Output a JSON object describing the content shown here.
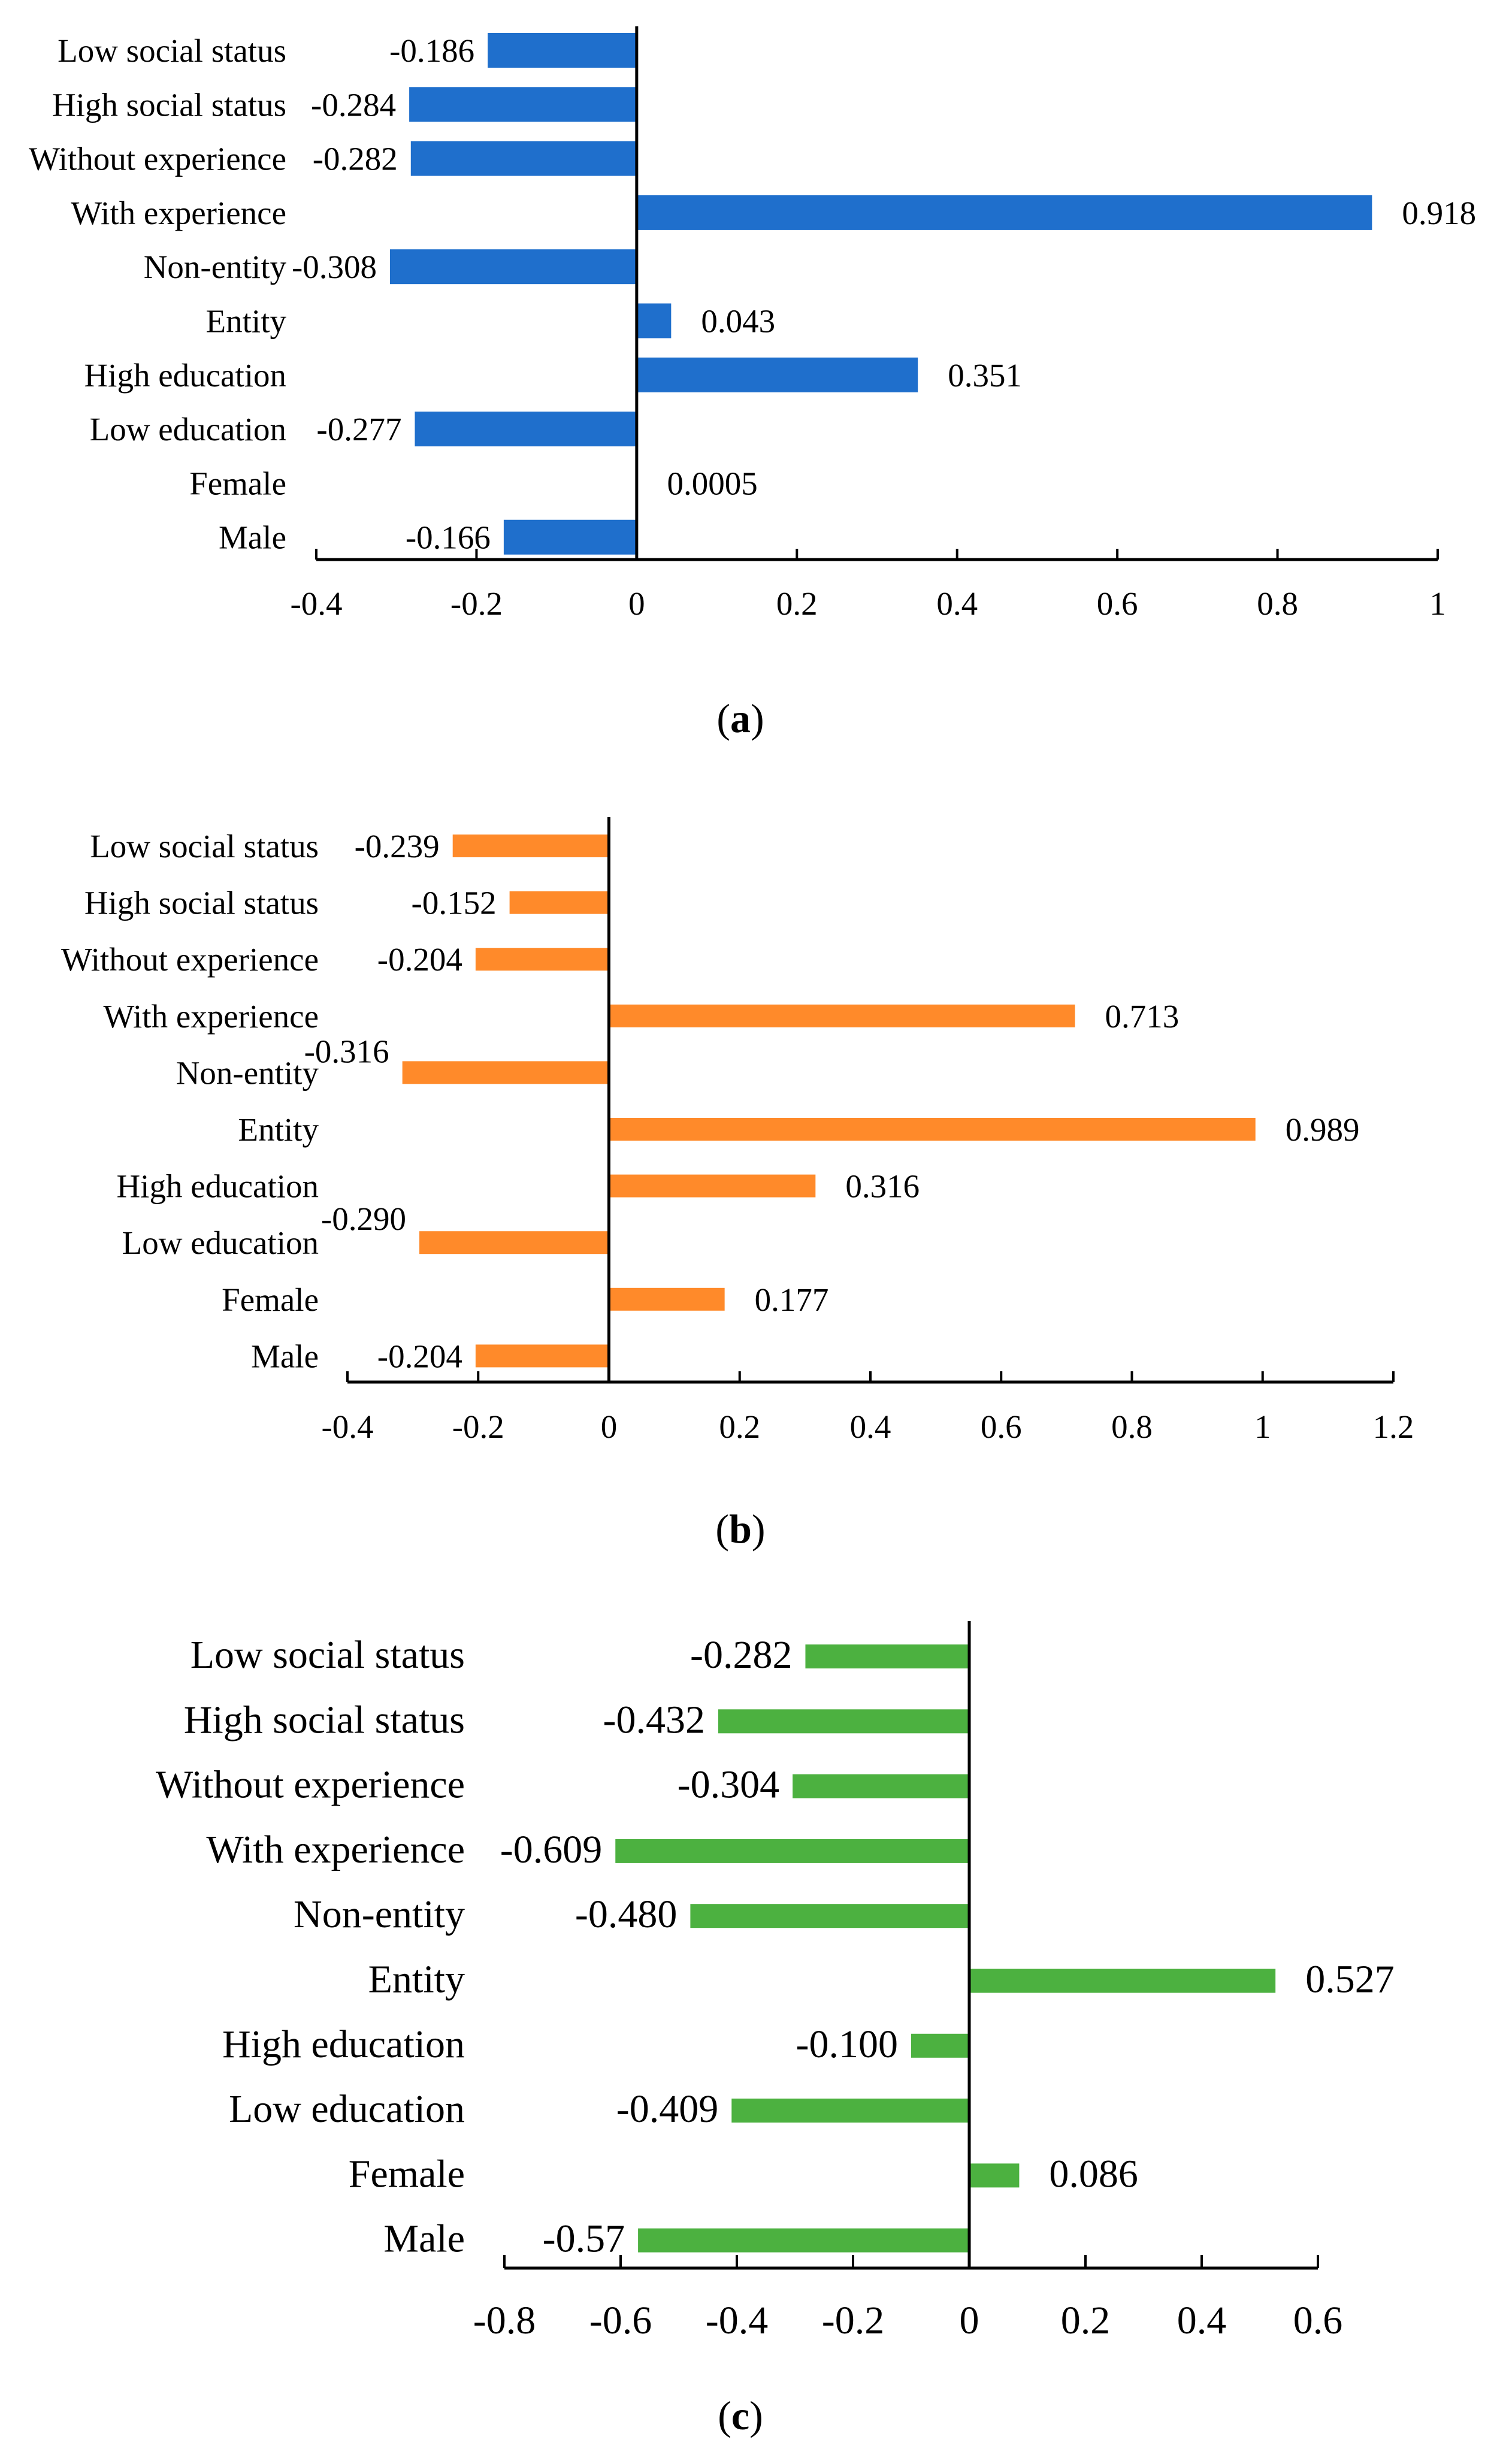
{
  "chart_data": [
    {
      "type": "bar",
      "orientation": "horizontal",
      "caption": {
        "open": "(",
        "letter": "a",
        "close": ")"
      },
      "categories": [
        "Low social status",
        "High social status",
        "Without experience",
        "With experience",
        "Non-entity",
        "Entity",
        "High education",
        "Low education",
        "Female",
        "Male"
      ],
      "values": [
        -0.186,
        -0.284,
        -0.282,
        0.918,
        -0.308,
        0.043,
        0.351,
        -0.277,
        0.0005,
        -0.166
      ],
      "value_labels": [
        "-0.186",
        "-0.284",
        "-0.282",
        "0.918",
        "-0.308",
        "0.043",
        "0.351",
        "-0.277",
        "0.0005",
        "-0.166"
      ],
      "xlim": [
        -0.4,
        1
      ],
      "ticks": [
        -0.4,
        -0.2,
        0,
        0.2,
        0.4,
        0.6,
        0.8,
        1
      ],
      "tick_labels": [
        "-0.4",
        "-0.2",
        "0",
        "0.2",
        "0.4",
        "0.6",
        "0.8",
        "1"
      ],
      "color": "#1f6fcc"
    },
    {
      "type": "bar",
      "orientation": "horizontal",
      "caption": {
        "open": "(",
        "letter": "b",
        "close": ")"
      },
      "categories": [
        "Low social status",
        "High social status",
        "Without experience",
        "With experience",
        "Non-entity",
        "Entity",
        "High education",
        "Low education",
        "Female",
        "Male"
      ],
      "values": [
        -0.239,
        -0.152,
        -0.204,
        0.713,
        -0.316,
        0.989,
        0.316,
        -0.29,
        0.177,
        -0.204
      ],
      "value_labels": [
        "-0.239",
        "-0.152",
        "-0.204",
        "0.713",
        "-0.316",
        "0.989",
        "0.316",
        "-0.290",
        "0.177",
        "-0.204"
      ],
      "xlim": [
        -0.4,
        1.2
      ],
      "ticks": [
        -0.4,
        -0.2,
        0,
        0.2,
        0.4,
        0.6,
        0.8,
        1,
        1.2
      ],
      "tick_labels": [
        "-0.4",
        "-0.2",
        "0",
        "0.2",
        "0.4",
        "0.6",
        "0.8",
        "1",
        "1.2"
      ],
      "color": "#ff8a2a"
    },
    {
      "type": "bar",
      "orientation": "horizontal",
      "caption": {
        "open": "(",
        "letter": "c",
        "close": ")"
      },
      "categories": [
        "Low social status",
        "High social status",
        "Without experience",
        "With experience",
        "Non-entity",
        "Entity",
        "High education",
        "Low education",
        "Female",
        "Male"
      ],
      "values": [
        -0.282,
        -0.432,
        -0.304,
        -0.609,
        -0.48,
        0.527,
        -0.1,
        -0.409,
        0.086,
        -0.57
      ],
      "value_labels": [
        "-0.282",
        "-0.432",
        "-0.304",
        "-0.609",
        "-0.480",
        "0.527",
        "-0.100",
        "-0.409",
        "0.086",
        "-0.57"
      ],
      "xlim": [
        -0.8,
        0.6
      ],
      "ticks": [
        -0.8,
        -0.6,
        -0.4,
        -0.2,
        0,
        0.2,
        0.4,
        0.6
      ],
      "tick_labels": [
        "-0.8",
        "-0.6",
        "-0.4",
        "-0.2",
        "0",
        "0.2",
        "0.4",
        "0.6"
      ],
      "color": "#4cb140"
    }
  ]
}
